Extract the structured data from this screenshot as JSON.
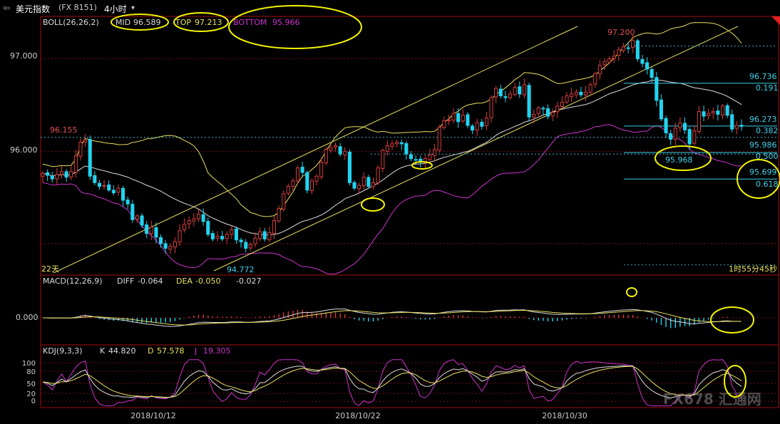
{
  "titlebar": {
    "back_label": "⇦",
    "symbol": "美元指数",
    "code": "(FX 8151)",
    "period": "4小时"
  },
  "colors": {
    "bull": "#d83c3c",
    "bear": "#22d3ee",
    "mid": "#dcdcdc",
    "top": "#e8e060",
    "bottom": "#cc33cc",
    "annotation": "#f4f400",
    "fib": "#40d0e8",
    "grid": "#a01010"
  },
  "chart_data": [
    {
      "type": "candlestick",
      "indicator_label": "BOLL(26,26,2)",
      "legend": [
        {
          "name": "MID",
          "value": "96.589"
        },
        {
          "name": "TOP",
          "value": "97.213"
        },
        {
          "name": "BOTTOM",
          "value": "95.966"
        }
      ],
      "y_ticks": [
        "97.000",
        "96.000"
      ],
      "ylim": [
        94.66,
        97.46
      ],
      "high_label": "97.200",
      "low_label": "94.772",
      "left_label": "96.155",
      "lookback_label": "22天",
      "countdown": "1时55分45秒",
      "annotation": "95.968",
      "fibonacci": [
        {
          "price": "96.736",
          "ratio": "0.191"
        },
        {
          "price": "96.273",
          "ratio": "0.382"
        },
        {
          "price": "95.986",
          "ratio": "0.500"
        },
        {
          "price": "95.699",
          "ratio": "0.618"
        }
      ],
      "x_ticks": [
        "2018/10/12",
        "2018/10/22",
        "2018/10/30"
      ],
      "closes": [
        95.76,
        95.74,
        95.7,
        95.75,
        95.78,
        95.72,
        95.78,
        95.95,
        96.1,
        96.12,
        95.73,
        95.66,
        95.62,
        95.63,
        95.58,
        95.55,
        95.6,
        95.47,
        95.43,
        95.26,
        95.3,
        95.2,
        95.11,
        95.18,
        95.07,
        95.0,
        94.95,
        94.97,
        95.02,
        95.14,
        95.21,
        95.25,
        95.27,
        95.32,
        95.24,
        95.1,
        95.05,
        95.08,
        95.05,
        95.1,
        95.15,
        95.04,
        95.02,
        94.95,
        94.99,
        95.06,
        95.13,
        95.05,
        95.12,
        95.25,
        95.38,
        95.54,
        95.62,
        95.68,
        95.82,
        95.77,
        95.58,
        95.68,
        95.73,
        95.88,
        96.02,
        96.04,
        96.06,
        95.97,
        96.0,
        95.66,
        95.6,
        95.63,
        95.72,
        95.62,
        95.66,
        95.82,
        96.01,
        96.06,
        96.08,
        96.1,
        96.08,
        95.97,
        95.92,
        95.91,
        95.88,
        95.92,
        95.96,
        96.02,
        96.26,
        96.33,
        96.34,
        96.41,
        96.32,
        96.39,
        96.28,
        96.23,
        96.31,
        96.27,
        96.36,
        96.58,
        96.68,
        96.6,
        96.58,
        96.62,
        96.69,
        96.62,
        96.72,
        96.37,
        96.4,
        96.47,
        96.46,
        96.38,
        96.42,
        96.49,
        96.53,
        96.6,
        96.62,
        96.64,
        96.61,
        96.64,
        96.72,
        96.84,
        96.93,
        96.97,
        97.0,
        97.03,
        97.1,
        97.13,
        97.12,
        97.2,
        97.0,
        96.95,
        96.89,
        96.8,
        96.55,
        96.35,
        96.2,
        96.13,
        96.25,
        96.31,
        96.23,
        96.08,
        96.22,
        96.43,
        96.38,
        96.41,
        96.43,
        96.4,
        96.49,
        96.39,
        96.24,
        96.28,
        96.27
      ]
    },
    {
      "type": "macd",
      "indicator_label": "MACD(12,26,9)",
      "legend": [
        {
          "name": "DIFF",
          "value": "-0.064"
        },
        {
          "name": "DEA",
          "value": "-0.050"
        },
        {
          "name": "",
          "value": "-0.027"
        }
      ],
      "y_ticks": [
        "0.000"
      ]
    },
    {
      "type": "kdj",
      "indicator_label": "KDJ(9,3,3)",
      "legend": [
        {
          "name": "K",
          "value": "44.820"
        },
        {
          "name": "D",
          "value": "57.578"
        },
        {
          "name": "J",
          "value": "19.305"
        }
      ],
      "y_ticks": [
        "100",
        "80",
        "50",
        "20",
        "0"
      ],
      "watermark": "FX678 汇通网"
    }
  ]
}
